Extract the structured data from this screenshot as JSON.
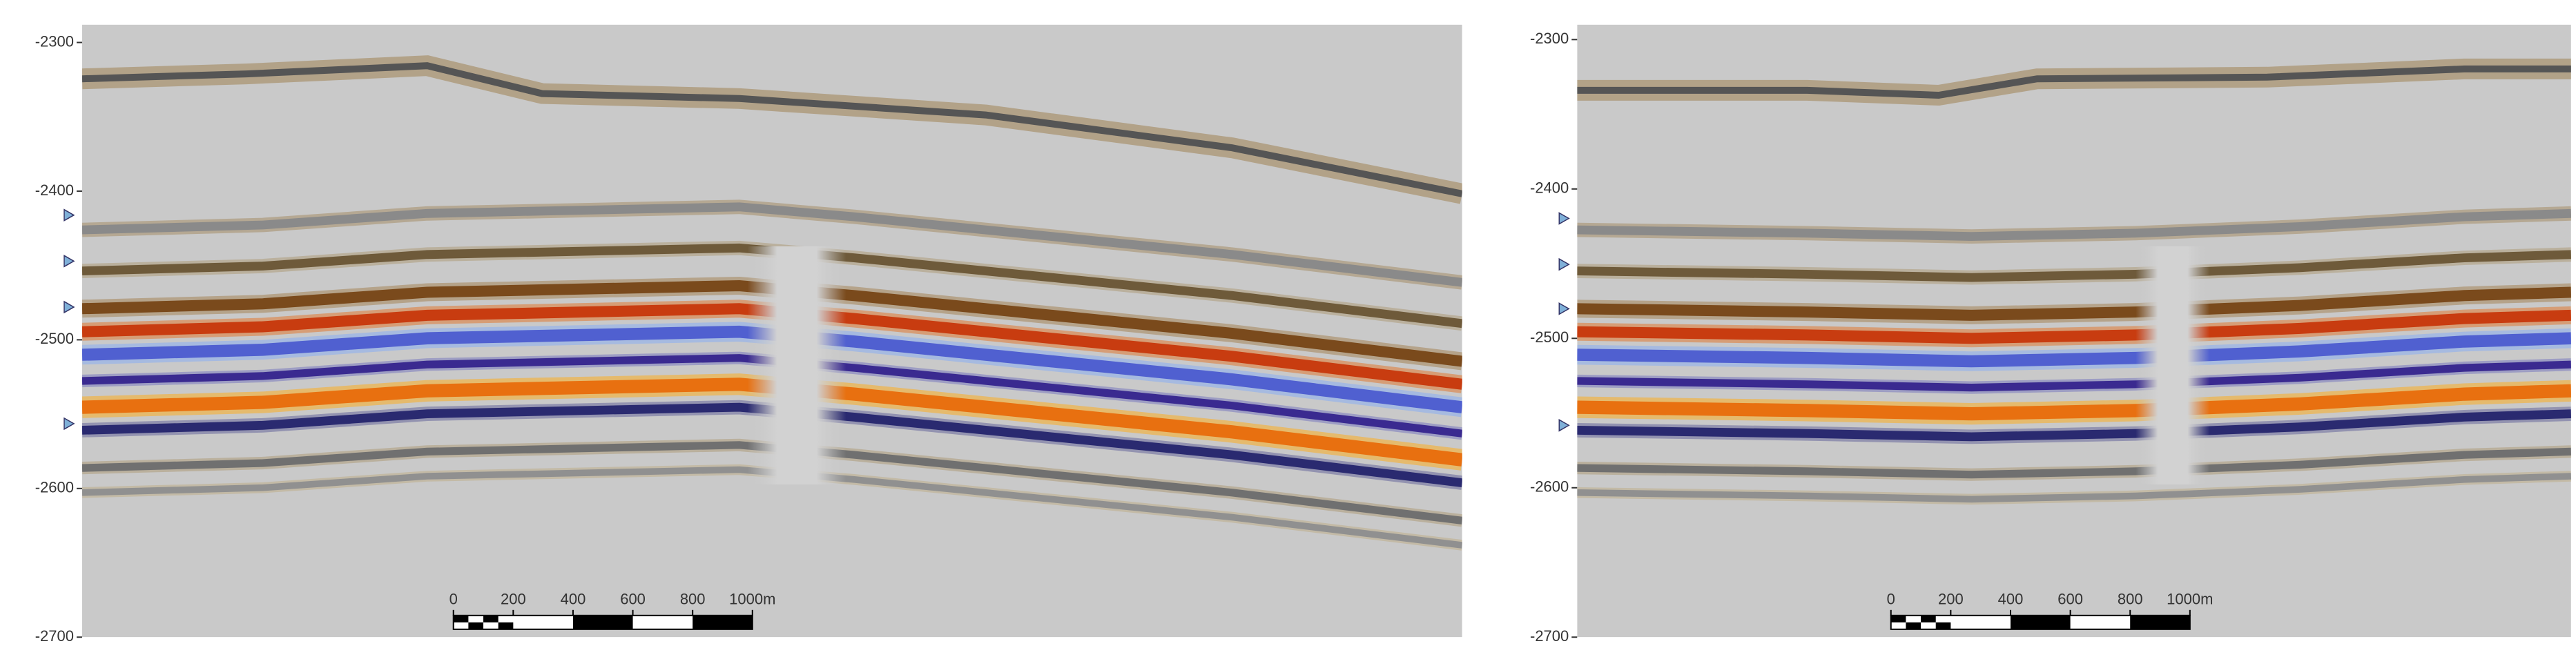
{
  "panels": [
    {
      "ylim": [
        -2288,
        -2700
      ],
      "yticks": [
        -2300,
        -2400,
        -2500,
        -2600,
        -2700
      ],
      "scalebar": [
        0,
        200,
        400,
        600,
        800,
        {
          "value": 1000,
          "label": "1000m"
        }
      ]
    },
    {
      "ylim": [
        -2290,
        -2700
      ],
      "yticks": [
        -2300,
        -2400,
        -2500,
        -2600,
        -2700
      ],
      "scalebar": [
        0,
        200,
        400,
        600,
        800,
        {
          "value": 1000,
          "label": "1000m"
        }
      ]
    }
  ]
}
